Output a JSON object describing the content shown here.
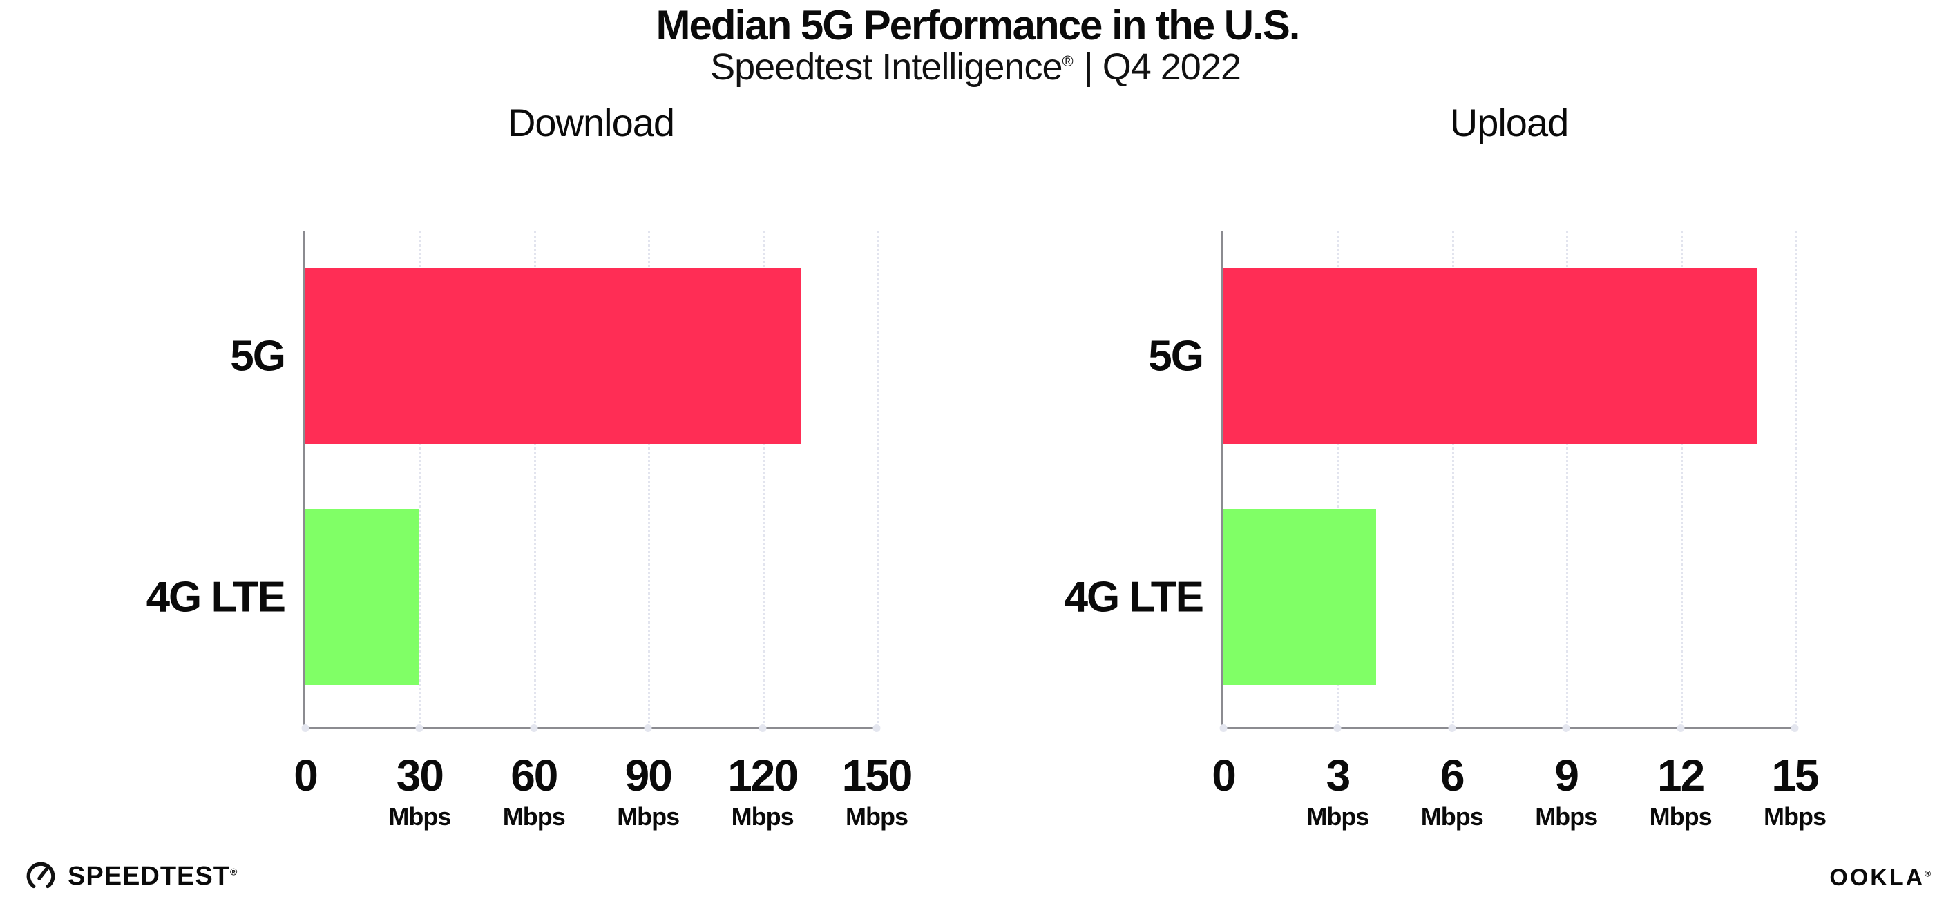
{
  "header": {
    "title": "Median 5G Performance in the U.S.",
    "subtitle_brand": "Speedtest Intelligence",
    "subtitle_mark": "®",
    "subtitle_rest": "| Q4 2022"
  },
  "chart_data": [
    {
      "type": "bar",
      "orientation": "horizontal",
      "title": "Download",
      "categories": [
        "5G",
        "4G LTE"
      ],
      "values": [
        130,
        30
      ],
      "unit": "Mbps",
      "xlim": [
        0,
        150
      ],
      "xticks": [
        0,
        30,
        60,
        90,
        120,
        150
      ],
      "bar_colors": [
        "#ff2d55",
        "#80ff66"
      ],
      "grid": "vertical-dotted",
      "legend": "none"
    },
    {
      "type": "bar",
      "orientation": "horizontal",
      "title": "Upload",
      "categories": [
        "5G",
        "4G LTE"
      ],
      "values": [
        14,
        4
      ],
      "unit": "Mbps",
      "xlim": [
        0,
        15
      ],
      "xticks": [
        0,
        3,
        6,
        9,
        12,
        15
      ],
      "bar_colors": [
        "#ff2d55",
        "#80ff66"
      ],
      "grid": "vertical-dotted",
      "legend": "none"
    }
  ],
  "footer": {
    "speedtest_label": "SPEEDTEST",
    "speedtest_mark": "®",
    "ookla_label": "OOKLA",
    "ookla_mark": "®"
  },
  "colors": {
    "bar_5g": "#ff2d55",
    "bar_4g_lte": "#80ff66",
    "axis": "#8b8b90",
    "grid": "#e2e4ee",
    "text": "#0a0a0a"
  }
}
